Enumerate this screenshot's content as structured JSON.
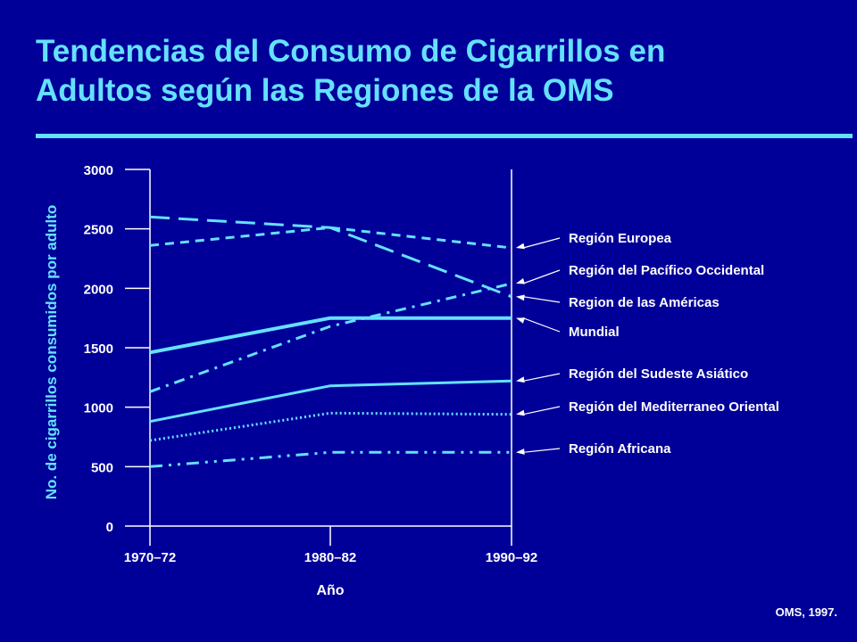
{
  "slide": {
    "title_line1": "Tendencias del Consumo de Cigarrillos en",
    "title_line2": "Adultos según las Regiones de la OMS",
    "source": "OMS, 1997.",
    "colors": {
      "background": "#000099",
      "title": "#66e0ff",
      "line": "#66e0ff",
      "text": "#ffffff"
    }
  },
  "chart_data": {
    "type": "line",
    "xlabel": "Año",
    "ylabel": "No. de cigarrillos consumidos por adulto",
    "categories": [
      "1970–72",
      "1980–82",
      "1990–92"
    ],
    "ylim": [
      0,
      3000
    ],
    "yticks": [
      0,
      500,
      1000,
      1500,
      2000,
      2500,
      3000
    ],
    "grid": false,
    "legend_placement": "right, labels with arrows pointing to line ends",
    "series": [
      {
        "name": "Región Europea",
        "values": [
          2360,
          2510,
          2340
        ],
        "style": "short-dash"
      },
      {
        "name": "Región del Pacífico Occidental",
        "values": [
          1130,
          1680,
          2040
        ],
        "style": "dash-dot"
      },
      {
        "name": "Region de las Américas",
        "values": [
          2600,
          2510,
          1930
        ],
        "style": "long-dash"
      },
      {
        "name": "Mundial",
        "values": [
          1460,
          1750,
          1750
        ],
        "style": "solid-thick"
      },
      {
        "name": "Región del Sudeste Asiático",
        "values": [
          880,
          1180,
          1220
        ],
        "style": "solid"
      },
      {
        "name": "Región del Mediterraneo Oriental",
        "values": [
          720,
          950,
          940
        ],
        "style": "dotted"
      },
      {
        "name": "Región Africana",
        "values": [
          500,
          620,
          620
        ],
        "style": "dash-dot-dot"
      }
    ]
  }
}
